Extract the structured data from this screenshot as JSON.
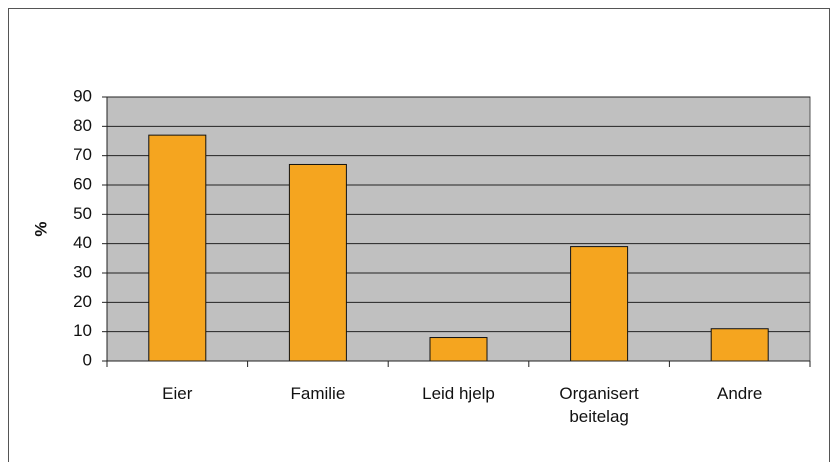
{
  "chart_data": {
    "type": "bar",
    "y_label": "%",
    "categories": [
      "Eier",
      "Familie",
      "Leid hjelp",
      "Organisert beitelag",
      "Andre"
    ],
    "values": [
      77,
      67,
      8,
      39,
      11
    ],
    "color": "#f5a51f",
    "ylim": [
      0,
      90
    ],
    "yticks": [
      0,
      10,
      20,
      30,
      40,
      50,
      60,
      70,
      80,
      90
    ],
    "grid": true
  }
}
